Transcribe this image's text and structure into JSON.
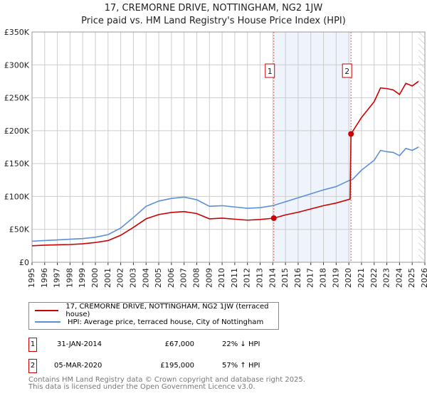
{
  "chart_data": {
    "type": "line",
    "title": "17, CREMORNE DRIVE, NOTTINGHAM, NG2 1JW",
    "subtitle": "Price paid vs. HM Land Registry's House Price Index (HPI)",
    "xlim": [
      1995,
      2026
    ],
    "ylim": [
      0,
      350000
    ],
    "x_ticks": [
      "1995",
      "1996",
      "1997",
      "1998",
      "1999",
      "2000",
      "2001",
      "2002",
      "2003",
      "2004",
      "2005",
      "2006",
      "2007",
      "2008",
      "2009",
      "2010",
      "2011",
      "2012",
      "2013",
      "2014",
      "2015",
      "2016",
      "2017",
      "2018",
      "2019",
      "2020",
      "2021",
      "2022",
      "2023",
      "2024",
      "2025",
      "2026"
    ],
    "y_ticks": [
      {
        "v": 0,
        "label": "£0"
      },
      {
        "v": 50000,
        "label": "£50K"
      },
      {
        "v": 100000,
        "label": "£100K"
      },
      {
        "v": 150000,
        "label": "£150K"
      },
      {
        "v": 200000,
        "label": "£200K"
      },
      {
        "v": 250000,
        "label": "£250K"
      },
      {
        "v": 300000,
        "label": "£300K"
      },
      {
        "v": 350000,
        "label": "£350K"
      }
    ],
    "grid": true,
    "series": [
      {
        "name": "17, CREMORNE DRIVE, NOTTINGHAM, NG2 1JW (terraced house)",
        "color": "#cc0000",
        "x": [
          1995,
          1996,
          1997,
          1998,
          1999,
          2000,
          2001,
          2002,
          2003,
          2004,
          2005,
          2006,
          2007,
          2008,
          2009,
          2010,
          2011,
          2012,
          2013,
          2014.08,
          2015,
          2016,
          2017,
          2018,
          2019,
          2020.1,
          2020.17,
          2021,
          2022,
          2022.5,
          2023,
          2023.5,
          2024,
          2024.5,
          2025,
          2025.5
        ],
        "y": [
          25000,
          26000,
          26500,
          27000,
          28000,
          30000,
          33000,
          41000,
          53000,
          66000,
          72500,
          75700,
          77000,
          74000,
          66000,
          67000,
          65500,
          64000,
          65000,
          67000,
          72000,
          76000,
          81000,
          86000,
          90000,
          96000,
          195000,
          220000,
          244000,
          265000,
          264000,
          262000,
          255000,
          272000,
          268000,
          275000
        ]
      },
      {
        "name": "HPI: Average price, terraced house, City of Nottingham",
        "color": "#5b8fd6",
        "x": [
          1995,
          1996,
          1997,
          1998,
          1999,
          2000,
          2001,
          2002,
          2003,
          2004,
          2005,
          2006,
          2007,
          2008,
          2009,
          2010,
          2011,
          2012,
          2013,
          2014,
          2015,
          2016,
          2017,
          2018,
          2019,
          2020,
          2020.3,
          2021,
          2022,
          2022.5,
          2023,
          2023.5,
          2024,
          2024.5,
          2025,
          2025.5
        ],
        "y": [
          32000,
          33000,
          34000,
          35000,
          36000,
          38000,
          42000,
          52000,
          68000,
          85000,
          93000,
          97000,
          99000,
          95000,
          85000,
          86000,
          84000,
          82000,
          83000,
          86000,
          92000,
          98000,
          104000,
          110000,
          115000,
          124000,
          126000,
          140000,
          155000,
          170000,
          168000,
          167000,
          162000,
          173000,
          170000,
          175000
        ]
      }
    ],
    "annotations": [
      {
        "label": "1",
        "x": 2014.08,
        "y": 67000
      },
      {
        "label": "2",
        "x": 2020.17,
        "y": 195000
      }
    ],
    "shaded_range": [
      2014.08,
      2020.17
    ],
    "hatched_from": 2025.5
  },
  "legend": [
    "17, CREMORNE DRIVE, NOTTINGHAM, NG2 1JW (terraced house)",
    "HPI: Average price, terraced house, City of Nottingham"
  ],
  "transactions": [
    {
      "n": "1",
      "date": "31-JAN-2014",
      "price": "£67,000",
      "hpi": "22% ↓ HPI"
    },
    {
      "n": "2",
      "date": "05-MAR-2020",
      "price": "£195,000",
      "hpi": "57% ↑ HPI"
    }
  ],
  "footer": [
    "Contains HM Land Registry data © Crown copyright and database right 2025.",
    "This data is licensed under the Open Government Licence v3.0."
  ]
}
